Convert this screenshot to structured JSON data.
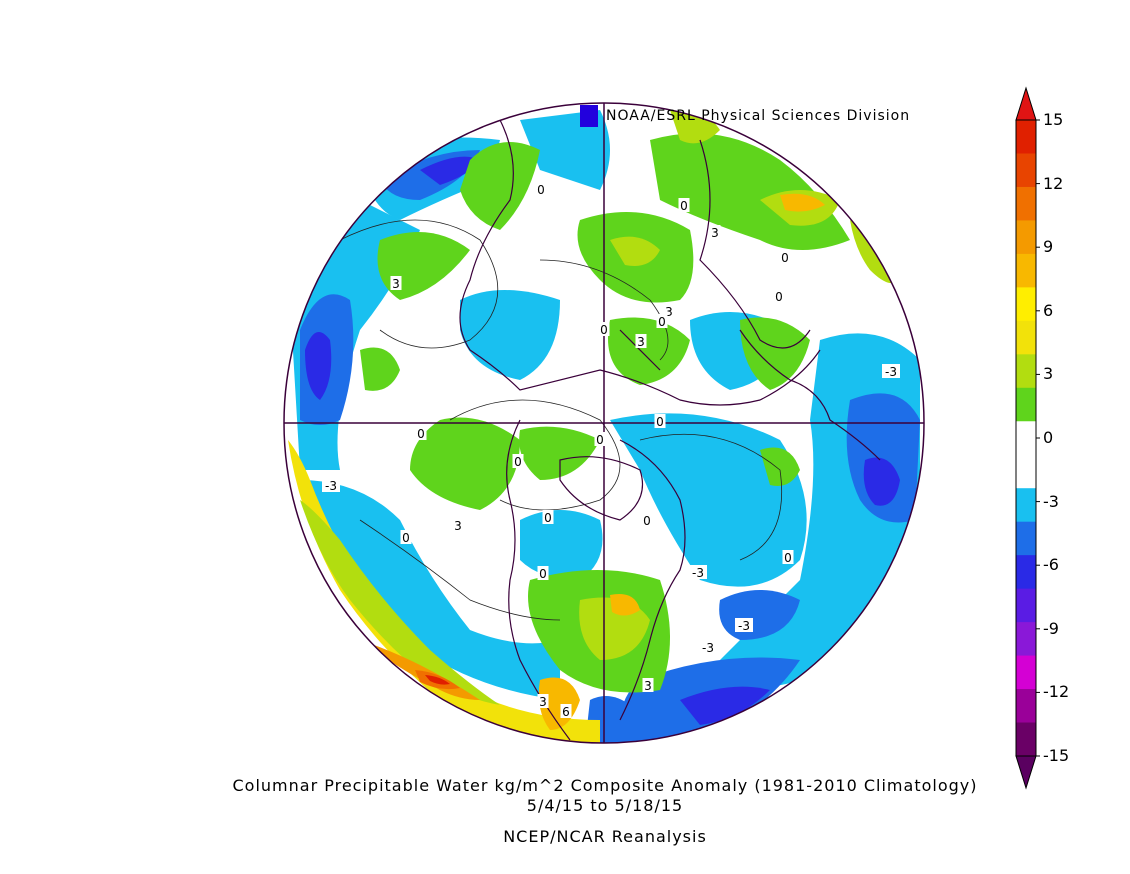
{
  "credit": "NOAA/ESRL Physical Sciences Division",
  "title_line1": "Columnar Precipitable Water kg/m^2 Composite Anomaly (1981-2010 Climatology)",
  "date_range": "5/4/15   to 5/18/15",
  "source": "NCEP/NCAR Reanalysis",
  "colorbar": {
    "ticks": [
      "15",
      "12",
      "9",
      "6",
      "3",
      "0",
      "-3",
      "-6",
      "-9",
      "-12",
      "-15"
    ],
    "colors": [
      "#6a0066",
      "#9a0099",
      "#d400d4",
      "#8a18d8",
      "#5a1ce4",
      "#2a2ae6",
      "#1e6ee8",
      "#19c0f0",
      "#ffffff",
      "#ffffff",
      "#5fd41c",
      "#b2dd10",
      "#f2e20a",
      "#ffee00",
      "#f8b800",
      "#f49a00",
      "#f07000",
      "#e84400",
      "#e02000"
    ],
    "top_color": "#e01414",
    "bottom_color": "#5a0060"
  },
  "contour_labels": [
    {
      "text": "0"
    },
    {
      "text": "3"
    },
    {
      "text": "3"
    },
    {
      "text": "0"
    },
    {
      "text": "0"
    },
    {
      "text": "3"
    },
    {
      "text": "0"
    },
    {
      "text": "3"
    },
    {
      "text": "0"
    },
    {
      "text": "0"
    },
    {
      "text": "-3"
    },
    {
      "text": "0"
    },
    {
      "text": "0"
    },
    {
      "text": "3"
    },
    {
      "text": "0"
    },
    {
      "text": "-3"
    },
    {
      "text": "0"
    },
    {
      "text": "0"
    },
    {
      "text": "0"
    },
    {
      "text": "-3"
    },
    {
      "text": "-3"
    },
    {
      "text": "0"
    },
    {
      "text": "-3"
    },
    {
      "text": "3"
    },
    {
      "text": "3"
    },
    {
      "text": "6"
    },
    {
      "text": "0"
    },
    {
      "text": "0"
    }
  ],
  "colors": {
    "coast": "#3a003a",
    "axis": "#3a003a"
  }
}
